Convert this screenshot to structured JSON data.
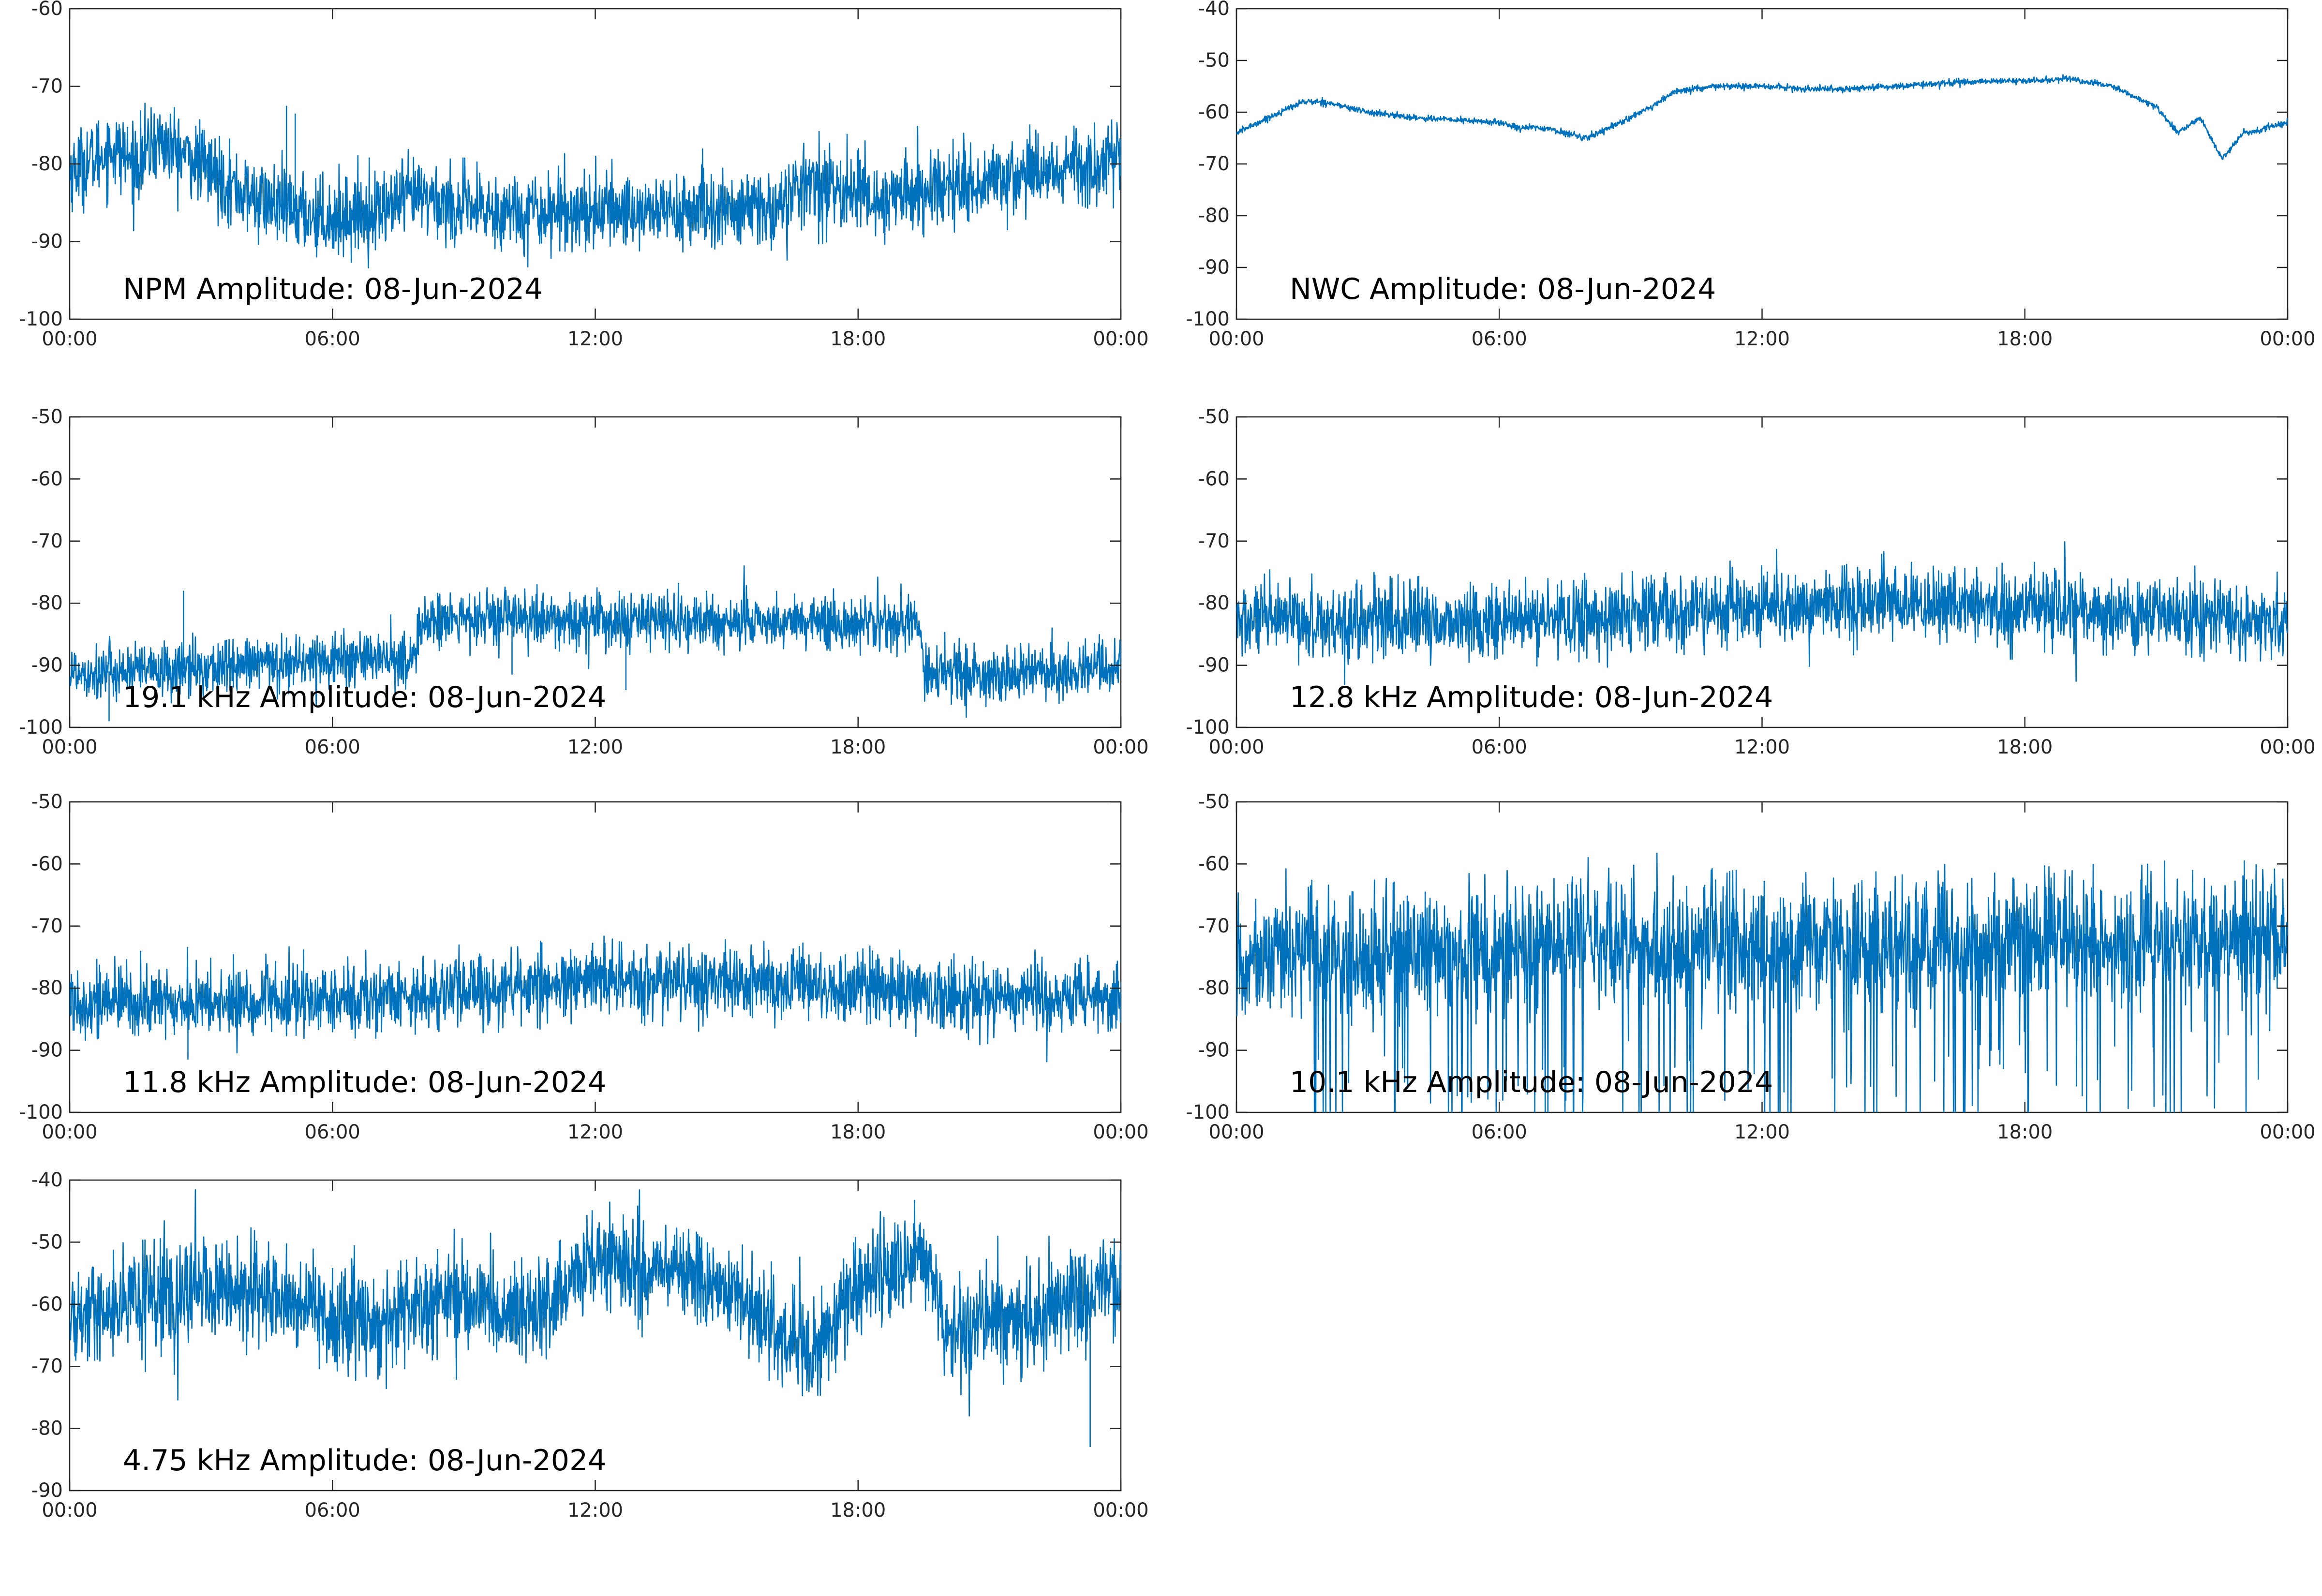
{
  "figure": {
    "line_color": "#0072bd",
    "axis_color": "#262626",
    "background": "#ffffff"
  },
  "chart_data": [
    {
      "type": "line",
      "title": "NPM Amplitude: 08-Jun-2024",
      "xlabel": "",
      "ylabel": "",
      "x_ticks": [
        "00:00",
        "06:00",
        "12:00",
        "18:00",
        "00:00"
      ],
      "ylim": [
        -100,
        -60
      ],
      "y_ticks": [
        -100,
        -90,
        -80,
        -70,
        -60
      ],
      "grid": false,
      "x_unit": "hour",
      "noise": 2.5,
      "series": [
        {
          "x": [
            0,
            1,
            1.5,
            2,
            3,
            4,
            5,
            6,
            7,
            8,
            9,
            10,
            11,
            12,
            13,
            14,
            15,
            16,
            16.5,
            17,
            17.5,
            18,
            18.5,
            19,
            20,
            21,
            22,
            23,
            24
          ],
          "values": [
            -81,
            -78,
            -80,
            -77,
            -80,
            -84,
            -86,
            -87,
            -86,
            -84,
            -86,
            -86,
            -86,
            -86,
            -86,
            -86,
            -86,
            -86,
            -84,
            -82,
            -84,
            -83,
            -85,
            -84,
            -83,
            -82,
            -81,
            -80,
            -80
          ],
          "spikes": [
            [
              4.95,
              -72.5
            ],
            [
              5.15,
              -73.5
            ]
          ]
        }
      ]
    },
    {
      "type": "line",
      "title": "NWC Amplitude: 08-Jun-2024",
      "xlabel": "",
      "ylabel": "",
      "x_ticks": [
        "00:00",
        "06:00",
        "12:00",
        "18:00",
        "00:00"
      ],
      "ylim": [
        -100,
        -40
      ],
      "y_ticks": [
        -100,
        -90,
        -80,
        -70,
        -60,
        -50,
        -40
      ],
      "grid": false,
      "x_unit": "hour",
      "noise": 0.3,
      "series": [
        {
          "x": [
            0,
            0.5,
            1,
            1.5,
            2,
            3,
            4,
            5,
            6,
            6.5,
            7,
            7.5,
            8,
            8.5,
            9,
            9.5,
            10,
            11,
            12,
            13,
            14,
            15,
            16,
            17,
            18,
            19,
            20,
            21,
            21.5,
            22,
            22.5,
            23,
            24
          ],
          "values": [
            -64,
            -62,
            -60,
            -58,
            -58,
            -60,
            -61,
            -61.5,
            -62,
            -63,
            -63,
            -64,
            -65,
            -63,
            -61,
            -59,
            -56,
            -55,
            -55,
            -55.5,
            -55.5,
            -55,
            -54.5,
            -54,
            -54,
            -53.5,
            -55,
            -59,
            -64,
            -61,
            -69,
            -64,
            -62
          ]
        }
      ]
    },
    {
      "type": "line",
      "title": "19.1 kHz Amplitude: 08-Jun-2024",
      "xlabel": "",
      "ylabel": "",
      "x_ticks": [
        "00:00",
        "06:00",
        "12:00",
        "18:00",
        "00:00"
      ],
      "ylim": [
        -100,
        -50
      ],
      "y_ticks": [
        -100,
        -90,
        -80,
        -70,
        -60,
        -50
      ],
      "grid": false,
      "x_unit": "hour",
      "noise": 2.2,
      "series": [
        {
          "x": [
            0,
            2,
            4,
            6,
            7.9,
            8.0,
            10,
            12,
            14,
            16,
            18,
            19.4,
            19.5,
            20,
            21,
            22,
            23,
            24
          ],
          "values": [
            -91,
            -91,
            -90,
            -89,
            -89,
            -83,
            -82.5,
            -83,
            -83,
            -83,
            -83,
            -83,
            -92,
            -91,
            -92,
            -91,
            -91,
            -90
          ],
          "spikes": [
            [
              2.6,
              -78
            ],
            [
              10.1,
              -91.5
            ],
            [
              12.7,
              -94
            ],
            [
              0.9,
              -99
            ]
          ]
        }
      ]
    },
    {
      "type": "line",
      "title": "12.8 kHz Amplitude: 08-Jun-2024",
      "xlabel": "",
      "ylabel": "",
      "x_ticks": [
        "00:00",
        "06:00",
        "12:00",
        "18:00",
        "00:00"
      ],
      "ylim": [
        -100,
        -50
      ],
      "y_ticks": [
        -100,
        -90,
        -80,
        -70,
        -60,
        -50
      ],
      "grid": false,
      "x_unit": "hour",
      "noise": 3.0,
      "series": [
        {
          "x": [
            0,
            3,
            6,
            9,
            12,
            15,
            18,
            21,
            24
          ],
          "values": [
            -83,
            -83,
            -83,
            -82,
            -81,
            -80,
            -81,
            -82,
            -83
          ]
        }
      ]
    },
    {
      "type": "line",
      "title": "11.8 kHz Amplitude: 08-Jun-2024",
      "xlabel": "",
      "ylabel": "",
      "x_ticks": [
        "00:00",
        "06:00",
        "12:00",
        "18:00",
        "00:00"
      ],
      "ylim": [
        -100,
        -50
      ],
      "y_ticks": [
        -100,
        -90,
        -80,
        -70,
        -60,
        -50
      ],
      "grid": false,
      "x_unit": "hour",
      "noise": 2.8,
      "series": [
        {
          "x": [
            0,
            3,
            6,
            9,
            12,
            15,
            18,
            21,
            24
          ],
          "values": [
            -82,
            -82.5,
            -82,
            -80.5,
            -79,
            -79,
            -80,
            -81,
            -82
          ],
          "spikes": [
            [
              2.7,
              -91.5
            ]
          ]
        }
      ]
    },
    {
      "type": "line",
      "title": "10.1 kHz Amplitude: 08-Jun-2024",
      "xlabel": "",
      "ylabel": "",
      "x_ticks": [
        "00:00",
        "06:00",
        "12:00",
        "18:00",
        "00:00"
      ],
      "ylim": [
        -100,
        -50
      ],
      "y_ticks": [
        -100,
        -90,
        -80,
        -70,
        -60,
        -50
      ],
      "grid": false,
      "x_unit": "hour",
      "noise": 4.5,
      "bursty": true,
      "series": [
        {
          "x": [
            0,
            1,
            2,
            3,
            6,
            9,
            12,
            15,
            18,
            21,
            24
          ],
          "values": [
            -76,
            -74,
            -76,
            -75,
            -74,
            -73,
            -74,
            -74,
            -73,
            -73,
            -72
          ]
        }
      ]
    },
    {
      "type": "line",
      "title": "4.75 kHz Amplitude: 08-Jun-2024",
      "xlabel": "",
      "ylabel": "",
      "x_ticks": [
        "00:00",
        "06:00",
        "12:00",
        "18:00",
        "00:00"
      ],
      "ylim": [
        -90,
        -40
      ],
      "y_ticks": [
        -90,
        -80,
        -70,
        -60,
        -50,
        -40
      ],
      "grid": false,
      "x_unit": "hour",
      "noise": 4.0,
      "series": [
        {
          "x": [
            0,
            1,
            2,
            3,
            4,
            5,
            6,
            7,
            8,
            9,
            10,
            11,
            12,
            13,
            14,
            15,
            16,
            17,
            17.5,
            18,
            19,
            19.5,
            20,
            21,
            22,
            23,
            24
          ],
          "values": [
            -63,
            -59,
            -60,
            -57,
            -58,
            -59,
            -62,
            -63,
            -60,
            -59,
            -62,
            -60,
            -53,
            -54,
            -55,
            -57,
            -63,
            -67,
            -64,
            -56,
            -54,
            -52,
            -65,
            -62,
            -62,
            -59,
            -56
          ],
          "spikes": [
            [
              23.3,
              -83
            ]
          ]
        }
      ]
    }
  ]
}
